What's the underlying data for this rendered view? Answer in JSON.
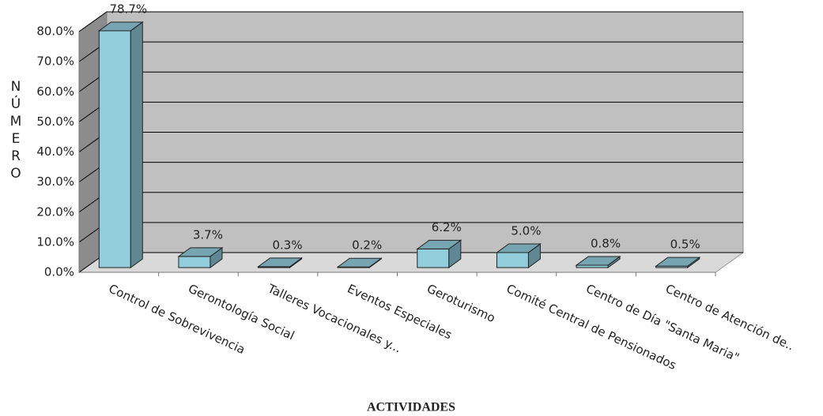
{
  "chart_data": {
    "type": "bar3d",
    "y_label": "NÚMERO",
    "x_label": "ACTIVIDADES",
    "categories": [
      "Control de Sobrevivencia",
      "Gerontología Social",
      "Talleres Vocacionales y...",
      "Eventos Especiales",
      "Geroturismo",
      "Comité Central de Pensionados",
      "Centro de Día \"Santa Maria\"",
      "Centro de Atención de.."
    ],
    "values": [
      78.7,
      3.7,
      0.3,
      0.2,
      6.2,
      5.0,
      0.8,
      0.5
    ],
    "value_labels": [
      "78.7%",
      "3.7%",
      "0.3%",
      "0.2%",
      "6.2%",
      "5.0%",
      "0.8%",
      "0.5%"
    ],
    "color": "#92cddc",
    "ylim": [
      0,
      80
    ],
    "yticks": [
      {
        "value": 0,
        "label": "0.0%"
      },
      {
        "value": 10,
        "label": "10.0%"
      },
      {
        "value": 20,
        "label": "20.0%"
      },
      {
        "value": 30,
        "label": "30.0%"
      },
      {
        "value": 40,
        "label": "40.0%"
      },
      {
        "value": 50,
        "label": "50.0%"
      },
      {
        "value": 60,
        "label": "60.0%"
      },
      {
        "value": 70,
        "label": "70.0%"
      },
      {
        "value": 80,
        "label": "80.0%"
      }
    ],
    "grid": true
  }
}
